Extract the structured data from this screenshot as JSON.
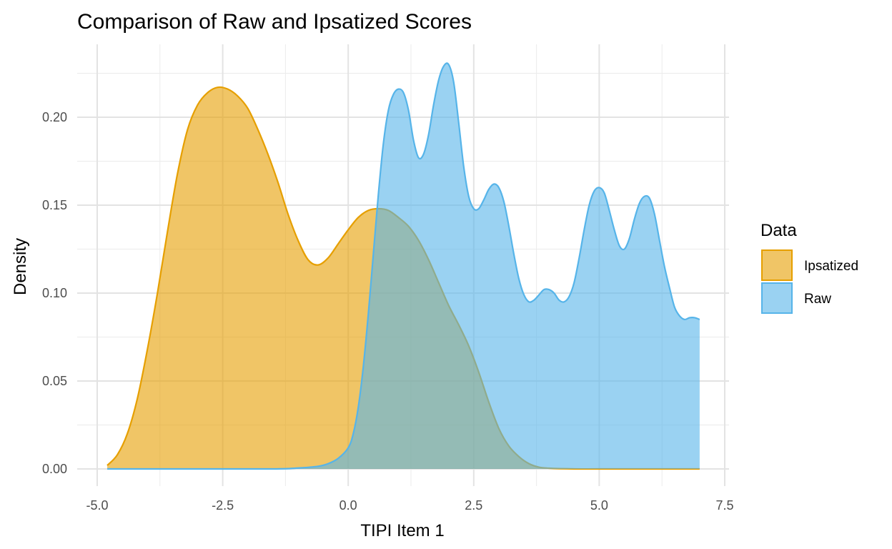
{
  "chart_data": {
    "type": "area",
    "title": "Comparison of Raw and Ipsatized Scores",
    "xlabel": "TIPI Item 1",
    "ylabel": "Density",
    "xlim": [
      -5.0,
      7.5
    ],
    "ylim": [
      0.0,
      0.23
    ],
    "x_ticks": [
      -5.0,
      -2.5,
      0.0,
      2.5,
      5.0,
      7.5
    ],
    "x_tick_labels": [
      "-5.0",
      "-2.5",
      "0.0",
      "2.5",
      "5.0",
      "7.5"
    ],
    "y_ticks": [
      0.0,
      0.05,
      0.1,
      0.15,
      0.2
    ],
    "y_tick_labels": [
      "0.00",
      "0.05",
      "0.10",
      "0.15",
      "0.20"
    ],
    "grid": true,
    "legend": {
      "title": "Data",
      "position": "right"
    },
    "series": [
      {
        "name": "Ipsatized",
        "fill": "#E69F00",
        "stroke": "#E69F00",
        "points": [
          [
            -4.8,
            0.002
          ],
          [
            -4.6,
            0.008
          ],
          [
            -4.4,
            0.02
          ],
          [
            -4.2,
            0.04
          ],
          [
            -4.0,
            0.068
          ],
          [
            -3.8,
            0.1
          ],
          [
            -3.6,
            0.135
          ],
          [
            -3.4,
            0.168
          ],
          [
            -3.2,
            0.193
          ],
          [
            -3.0,
            0.207
          ],
          [
            -2.8,
            0.214
          ],
          [
            -2.6,
            0.217
          ],
          [
            -2.4,
            0.216
          ],
          [
            -2.2,
            0.212
          ],
          [
            -2.0,
            0.205
          ],
          [
            -1.8,
            0.193
          ],
          [
            -1.6,
            0.179
          ],
          [
            -1.4,
            0.163
          ],
          [
            -1.2,
            0.145
          ],
          [
            -1.0,
            0.13
          ],
          [
            -0.8,
            0.119
          ],
          [
            -0.6,
            0.116
          ],
          [
            -0.4,
            0.12
          ],
          [
            -0.2,
            0.128
          ],
          [
            0.0,
            0.136
          ],
          [
            0.2,
            0.143
          ],
          [
            0.4,
            0.147
          ],
          [
            0.6,
            0.148
          ],
          [
            0.8,
            0.147
          ],
          [
            1.0,
            0.143
          ],
          [
            1.2,
            0.138
          ],
          [
            1.4,
            0.13
          ],
          [
            1.6,
            0.119
          ],
          [
            1.8,
            0.106
          ],
          [
            2.0,
            0.093
          ],
          [
            2.2,
            0.082
          ],
          [
            2.4,
            0.07
          ],
          [
            2.6,
            0.055
          ],
          [
            2.8,
            0.038
          ],
          [
            3.0,
            0.023
          ],
          [
            3.2,
            0.013
          ],
          [
            3.4,
            0.007
          ],
          [
            3.6,
            0.003
          ],
          [
            3.8,
            0.001
          ],
          [
            4.0,
            0.0004
          ],
          [
            4.5,
            0.0
          ],
          [
            5.0,
            0.0
          ],
          [
            6.0,
            0.0
          ],
          [
            7.0,
            0.0
          ]
        ]
      },
      {
        "name": "Raw",
        "fill": "#56B4E9",
        "stroke": "#56B4E9",
        "points": [
          [
            -4.8,
            0.0
          ],
          [
            -3.0,
            0.0
          ],
          [
            -1.5,
            0.0
          ],
          [
            -1.0,
            0.0005
          ],
          [
            -0.6,
            0.0015
          ],
          [
            -0.4,
            0.003
          ],
          [
            -0.2,
            0.006
          ],
          [
            0.0,
            0.012
          ],
          [
            0.1,
            0.02
          ],
          [
            0.2,
            0.035
          ],
          [
            0.3,
            0.058
          ],
          [
            0.4,
            0.088
          ],
          [
            0.5,
            0.122
          ],
          [
            0.6,
            0.156
          ],
          [
            0.7,
            0.185
          ],
          [
            0.8,
            0.204
          ],
          [
            0.9,
            0.213
          ],
          [
            1.0,
            0.216
          ],
          [
            1.1,
            0.214
          ],
          [
            1.2,
            0.204
          ],
          [
            1.3,
            0.187
          ],
          [
            1.4,
            0.177
          ],
          [
            1.5,
            0.179
          ],
          [
            1.6,
            0.19
          ],
          [
            1.7,
            0.207
          ],
          [
            1.8,
            0.221
          ],
          [
            1.9,
            0.229
          ],
          [
            2.0,
            0.23
          ],
          [
            2.1,
            0.22
          ],
          [
            2.2,
            0.197
          ],
          [
            2.3,
            0.172
          ],
          [
            2.4,
            0.155
          ],
          [
            2.5,
            0.148
          ],
          [
            2.6,
            0.148
          ],
          [
            2.7,
            0.153
          ],
          [
            2.8,
            0.159
          ],
          [
            2.9,
            0.162
          ],
          [
            3.0,
            0.16
          ],
          [
            3.1,
            0.152
          ],
          [
            3.2,
            0.138
          ],
          [
            3.3,
            0.122
          ],
          [
            3.4,
            0.108
          ],
          [
            3.5,
            0.099
          ],
          [
            3.6,
            0.095
          ],
          [
            3.7,
            0.096
          ],
          [
            3.8,
            0.099
          ],
          [
            3.9,
            0.102
          ],
          [
            4.0,
            0.102
          ],
          [
            4.1,
            0.1
          ],
          [
            4.2,
            0.096
          ],
          [
            4.3,
            0.095
          ],
          [
            4.4,
            0.098
          ],
          [
            4.5,
            0.106
          ],
          [
            4.6,
            0.12
          ],
          [
            4.7,
            0.136
          ],
          [
            4.8,
            0.15
          ],
          [
            4.9,
            0.158
          ],
          [
            5.0,
            0.16
          ],
          [
            5.1,
            0.157
          ],
          [
            5.2,
            0.147
          ],
          [
            5.3,
            0.136
          ],
          [
            5.4,
            0.127
          ],
          [
            5.5,
            0.125
          ],
          [
            5.6,
            0.131
          ],
          [
            5.7,
            0.142
          ],
          [
            5.8,
            0.151
          ],
          [
            5.9,
            0.155
          ],
          [
            6.0,
            0.154
          ],
          [
            6.1,
            0.145
          ],
          [
            6.2,
            0.13
          ],
          [
            6.3,
            0.115
          ],
          [
            6.4,
            0.103
          ],
          [
            6.5,
            0.092
          ],
          [
            6.6,
            0.087
          ],
          [
            6.7,
            0.085
          ],
          [
            6.8,
            0.086
          ],
          [
            6.9,
            0.086
          ],
          [
            7.0,
            0.085
          ]
        ]
      }
    ]
  }
}
